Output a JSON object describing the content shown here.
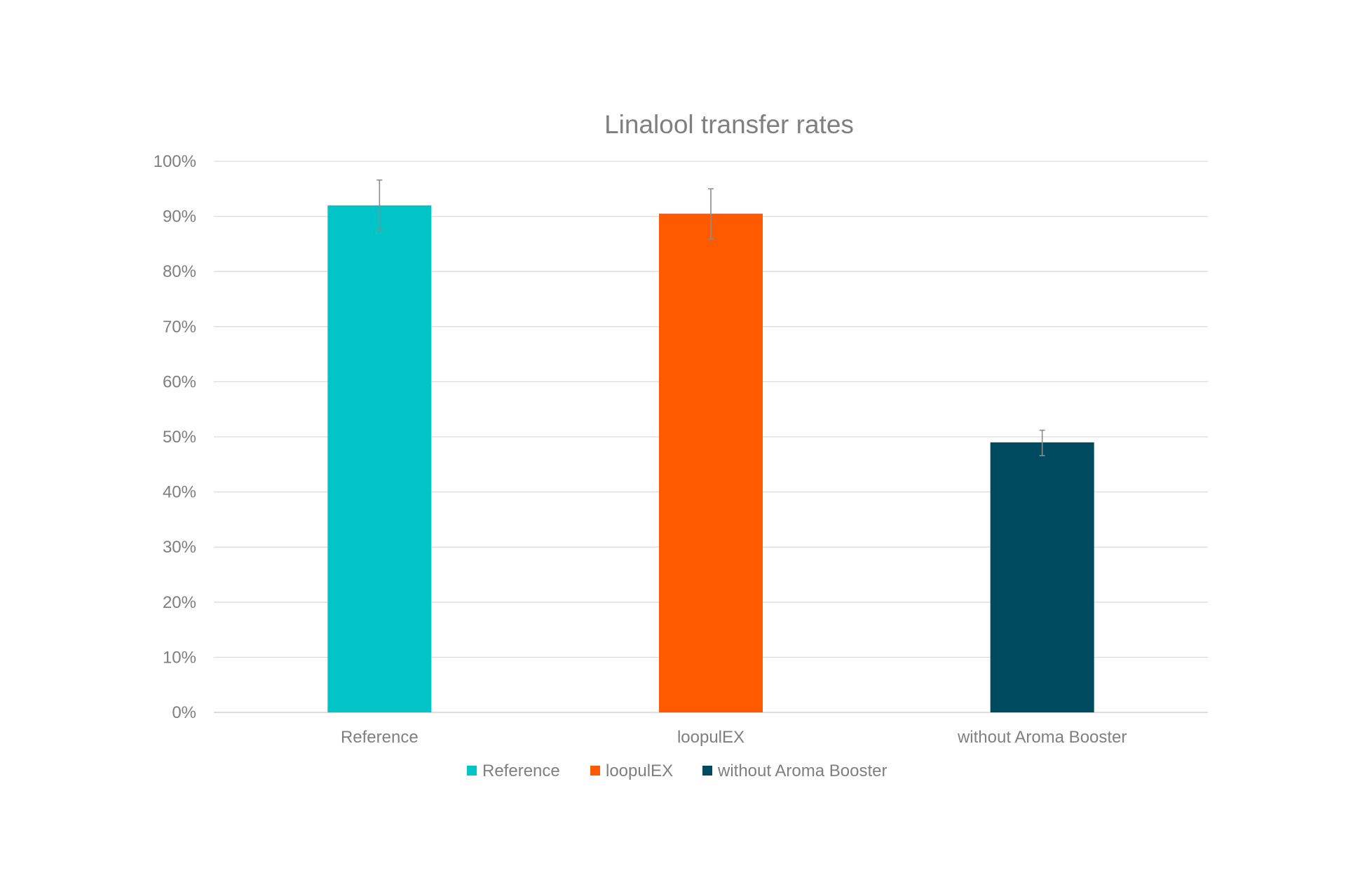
{
  "chart_data": {
    "type": "bar",
    "title": "Linalool transfer rates",
    "categories": [
      "Reference",
      "loopulEX",
      "without Aroma Booster"
    ],
    "values": [
      0.92,
      0.905,
      0.49
    ],
    "error_low": [
      0.874,
      0.859,
      0.466
    ],
    "error_high": [
      0.966,
      0.95,
      0.512
    ],
    "colors": [
      "#00C4C6",
      "#FF5A00",
      "#004A60"
    ],
    "ylim": [
      0,
      1.0
    ],
    "yticks": [
      0,
      0.1,
      0.2,
      0.3,
      0.4,
      0.5,
      0.6,
      0.7,
      0.8,
      0.9,
      1.0
    ],
    "ytick_labels": [
      "0%",
      "10%",
      "20%",
      "30%",
      "40%",
      "50%",
      "60%",
      "70%",
      "80%",
      "90%",
      "100%"
    ],
    "grid": true,
    "legend": {
      "position": "bottom",
      "entries": [
        "Reference",
        "loopulEX",
        "without Aroma Booster"
      ]
    }
  }
}
